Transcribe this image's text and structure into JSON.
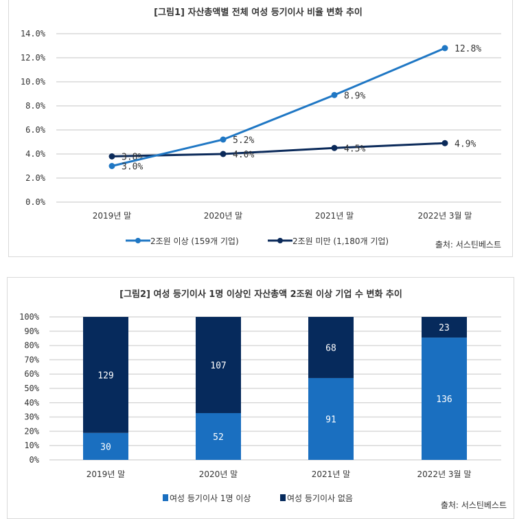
{
  "chart_data": [
    {
      "type": "line",
      "title": "[그림1] 자산총액별 전체 여성 등기이사 비율 변화 추이",
      "categories": [
        "2019년 말",
        "2020년 말",
        "2021년 말",
        "2022년 3월 말"
      ],
      "ylim": [
        0,
        14
      ],
      "yticks": [
        "0.0%",
        "2.0%",
        "4.0%",
        "6.0%",
        "8.0%",
        "10.0%",
        "12.0%",
        "14.0%"
      ],
      "grid": true,
      "legend_position": "bottom",
      "series": [
        {
          "name": "2조원 이상 (159개 기업)",
          "color": "#1f77c4",
          "values": [
            3.0,
            5.2,
            8.9,
            12.8
          ],
          "labels": [
            "3.0%",
            "5.2%",
            "8.9%",
            "12.8%"
          ]
        },
        {
          "name": "2조원 미만 (1,180개 기업)",
          "color": "#0b2a5a",
          "values": [
            3.8,
            4.0,
            4.5,
            4.9
          ],
          "labels": [
            "3.8%",
            "4.0%",
            "4.5%",
            "4.9%"
          ]
        }
      ],
      "source": "출처:  서스틴베스트"
    },
    {
      "type": "bar",
      "stacked": "percent",
      "title": "[그림2] 여성 등기이사 1명 이상인 자산총액 2조원 이상 기업 수 변화 추이",
      "categories": [
        "2019년 말",
        "2020년 말",
        "2021년 말",
        "2022년 3월 말"
      ],
      "ylim": [
        0,
        100
      ],
      "yticks": [
        "0%",
        "10%",
        "20%",
        "30%",
        "40%",
        "50%",
        "60%",
        "70%",
        "80%",
        "90%",
        "100%"
      ],
      "grid": true,
      "legend_position": "bottom",
      "series": [
        {
          "name": "여성  등기이사 1명 이상",
          "color": "#1a6fc0",
          "values": [
            30,
            52,
            91,
            136
          ]
        },
        {
          "name": "여성 등기이사 없음",
          "color": "#062a5c",
          "values": [
            129,
            107,
            68,
            23
          ]
        }
      ],
      "source": "출처:  서스틴베스트"
    }
  ]
}
